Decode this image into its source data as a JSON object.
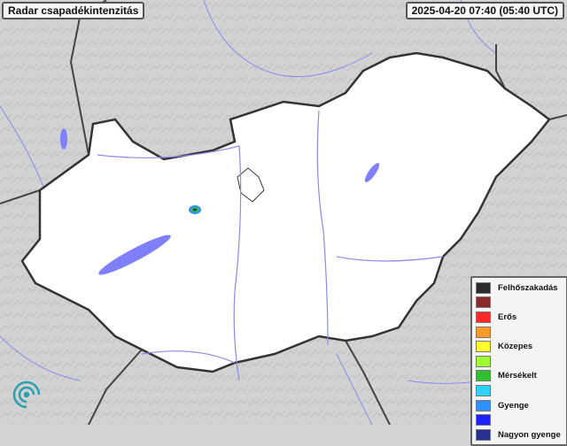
{
  "title": "Radar csapadékintenzitás",
  "timestamp": "2025-04-20 07:40 (05:40 UTC)",
  "legend": [
    {
      "label": "Felhőszakadás",
      "color": "#2b2b2b"
    },
    {
      "label": "",
      "color": "#8b2a2a"
    },
    {
      "label": "Erős",
      "color": "#ff2a2a"
    },
    {
      "label": "",
      "color": "#ff9a2a"
    },
    {
      "label": "Közepes",
      "color": "#ffff30"
    },
    {
      "label": "",
      "color": "#a0ff30"
    },
    {
      "label": "Mérsékelt",
      "color": "#30c030"
    },
    {
      "label": "",
      "color": "#30d0ff"
    },
    {
      "label": "Gyenge",
      "color": "#3090ff"
    },
    {
      "label": "",
      "color": "#2020ff"
    },
    {
      "label": "Nagyon gyenge",
      "color": "#283090"
    }
  ],
  "colors": {
    "country": "#ffffff",
    "surroundings": "#d4d4d4",
    "water": "#8080ff",
    "border": "#333333"
  }
}
